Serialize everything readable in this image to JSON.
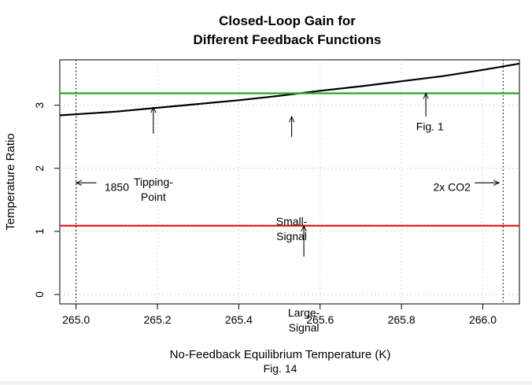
{
  "chart_data": {
    "type": "line",
    "title": "Closed-Loop Gain for",
    "subtitle": "Different Feedback Functions",
    "xlabel": "No-Feedback Equilibrium Temperature (K)",
    "ylabel": "Temperature Ratio",
    "caption": "Fig. 14",
    "xlim": [
      264.96,
      266.09
    ],
    "ylim": [
      -0.15,
      3.72
    ],
    "xticks": [
      265.0,
      265.2,
      265.4,
      265.6,
      265.8,
      266.0
    ],
    "xtick_labels": [
      "265.0",
      "265.2",
      "265.4",
      "265.6",
      "265.8",
      "266.0"
    ],
    "yticks": [
      0,
      1,
      2,
      3
    ],
    "ytick_labels": [
      "0",
      "1",
      "2",
      "3"
    ],
    "grid": true,
    "series": [
      {
        "name": "Tipping-Point",
        "color": "#000000",
        "x": [
          264.96,
          265.1,
          265.2,
          265.3,
          265.4,
          265.5,
          265.6,
          265.7,
          265.8,
          265.9,
          266.0,
          266.09
        ],
        "y": [
          2.84,
          2.9,
          2.96,
          3.02,
          3.08,
          3.15,
          3.23,
          3.3,
          3.38,
          3.46,
          3.56,
          3.66
        ]
      },
      {
        "name": "Small-Signal / Fig. 1",
        "color": "#22aa22",
        "x": [
          264.96,
          266.09
        ],
        "y": [
          3.19,
          3.19
        ]
      },
      {
        "name": "Large-Signal",
        "color": "#dd1111",
        "x": [
          264.96,
          266.09
        ],
        "y": [
          1.09,
          1.09
        ]
      }
    ],
    "vlines": [
      {
        "x": 265.0
      },
      {
        "x": 266.05
      }
    ],
    "annotations": [
      {
        "lines": [
          "Tipping-",
          "Point"
        ],
        "x": 265.19,
        "y": 1.72,
        "arrow": {
          "from": [
            265.19,
            2.55
          ],
          "to": [
            265.19,
            2.97
          ]
        }
      },
      {
        "lines": [
          "Small-",
          "Signal"
        ],
        "x": 265.53,
        "y": 1.1,
        "arrow": {
          "from": [
            265.53,
            2.5
          ],
          "to": [
            265.53,
            2.82
          ]
        }
      },
      {
        "lines": [
          "Fig. 1"
        ],
        "x": 265.87,
        "y": 2.6,
        "arrow": {
          "from": [
            265.86,
            2.82
          ],
          "to": [
            265.86,
            3.19
          ]
        }
      },
      {
        "lines": [
          "Large-",
          "Signal"
        ],
        "x": 265.56,
        "y": -0.35,
        "arrow": {
          "from": [
            265.56,
            0.6
          ],
          "to": [
            265.56,
            1.09
          ]
        }
      },
      {
        "lines": [
          "1850"
        ],
        "x": 265.07,
        "y": 1.64,
        "anchor": "start",
        "arrow": {
          "from": [
            265.05,
            1.77
          ],
          "to": [
            265.0,
            1.77
          ]
        }
      },
      {
        "lines": [
          "2x CO2"
        ],
        "x": 265.97,
        "y": 1.64,
        "anchor": "end",
        "arrow": {
          "from": [
            265.98,
            1.77
          ],
          "to": [
            266.04,
            1.77
          ]
        }
      }
    ]
  }
}
